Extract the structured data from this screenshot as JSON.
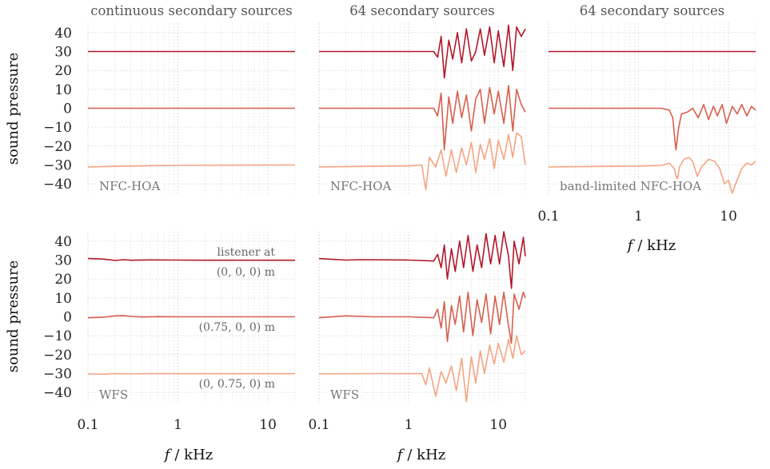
{
  "figure": {
    "ylabel": "sound pressure",
    "xlabel_var": "f",
    "xlabel_unit": "/ kHz",
    "annotation_header": "listener at",
    "colors": {
      "dark": "#b2182b",
      "mid": "#d6604d",
      "light": "#f4a582"
    }
  },
  "chart_data": [
    {
      "id": "nfchoa-continuous",
      "type": "line",
      "title": "continuous secondary sources",
      "tag": "NFC-HOA",
      "xscale": "log",
      "xlim": [
        0.1,
        20
      ],
      "ylim": [
        -45,
        45
      ],
      "yticks": [
        "40",
        "30",
        "20",
        "10",
        "0",
        "−10",
        "−20",
        "−30",
        "−40"
      ],
      "xticks": [],
      "series": [
        {
          "color": "#b2182b",
          "points": [
            [
              0.1,
              30
            ],
            [
              20,
              30
            ]
          ]
        },
        {
          "color": "#d6604d",
          "points": [
            [
              0.1,
              0
            ],
            [
              1,
              0
            ],
            [
              20,
              0
            ]
          ]
        },
        {
          "color": "#f4a582",
          "points": [
            [
              0.1,
              -31
            ],
            [
              0.2,
              -30.7
            ],
            [
              0.5,
              -30.4
            ],
            [
              1,
              -30.2
            ],
            [
              5,
              -30.1
            ],
            [
              20,
              -30
            ]
          ]
        }
      ]
    },
    {
      "id": "nfchoa-64",
      "type": "line",
      "title": "64 secondary sources",
      "tag": "NFC-HOA",
      "xscale": "log",
      "xlim": [
        0.1,
        20
      ],
      "ylim": [
        -45,
        45
      ],
      "yticks": [],
      "xticks": [],
      "series": [
        {
          "color": "#b2182b",
          "points": [
            [
              0.1,
              30
            ],
            [
              1.9,
              30
            ],
            [
              2.1,
              27
            ],
            [
              2.3,
              38
            ],
            [
              2.5,
              16
            ],
            [
              2.8,
              36
            ],
            [
              3.1,
              26
            ],
            [
              3.5,
              40
            ],
            [
              3.9,
              24
            ],
            [
              4.4,
              42
            ],
            [
              5,
              25
            ],
            [
              5.6,
              30
            ],
            [
              6.3,
              42
            ],
            [
              7,
              28
            ],
            [
              8,
              43
            ],
            [
              9,
              24
            ],
            [
              10,
              41
            ],
            [
              11.5,
              22
            ],
            [
              13,
              44
            ],
            [
              14.5,
              20
            ],
            [
              16,
              43
            ],
            [
              18,
              38
            ],
            [
              20,
              42
            ]
          ]
        },
        {
          "color": "#d6604d",
          "points": [
            [
              0.1,
              0
            ],
            [
              1.9,
              0
            ],
            [
              2.1,
              -4
            ],
            [
              2.3,
              8
            ],
            [
              2.5,
              -22
            ],
            [
              2.8,
              6
            ],
            [
              3.1,
              -8
            ],
            [
              3.5,
              9
            ],
            [
              3.9,
              -5
            ],
            [
              4.4,
              7
            ],
            [
              5,
              -12
            ],
            [
              5.6,
              5
            ],
            [
              6.3,
              10
            ],
            [
              7,
              -8
            ],
            [
              8,
              11
            ],
            [
              9,
              -3
            ],
            [
              10,
              9
            ],
            [
              11.5,
              -8
            ],
            [
              13,
              12
            ],
            [
              14.5,
              -12
            ],
            [
              16,
              10
            ],
            [
              18,
              2
            ],
            [
              20,
              -2
            ]
          ]
        },
        {
          "color": "#f4a582",
          "points": [
            [
              0.1,
              -31
            ],
            [
              1,
              -30.5
            ],
            [
              1.4,
              -30
            ],
            [
              1.55,
              -43
            ],
            [
              1.7,
              -26
            ],
            [
              2,
              -31
            ],
            [
              2.3,
              -22
            ],
            [
              2.6,
              -36
            ],
            [
              3,
              -22
            ],
            [
              3.4,
              -34
            ],
            [
              3.9,
              -21
            ],
            [
              4.4,
              -30
            ],
            [
              5,
              -18
            ],
            [
              5.6,
              -34
            ],
            [
              6.3,
              -19
            ],
            [
              7,
              -27
            ],
            [
              8,
              -16
            ],
            [
              9,
              -32
            ],
            [
              10,
              -17
            ],
            [
              11.5,
              -27
            ],
            [
              13,
              -14
            ],
            [
              14.5,
              -26
            ],
            [
              16,
              -13
            ],
            [
              18,
              -15
            ],
            [
              20,
              -30
            ]
          ]
        }
      ]
    },
    {
      "id": "bandlimited-64",
      "type": "line",
      "title": "64 secondary sources",
      "tag": "band-limited NFC-HOA",
      "xscale": "log",
      "xlim": [
        0.1,
        20
      ],
      "ylim": [
        -45,
        45
      ],
      "yticks": [],
      "xticks": [
        "0.1",
        "1",
        "10"
      ],
      "series": [
        {
          "color": "#b2182b",
          "points": [
            [
              0.1,
              30
            ],
            [
              20,
              30
            ]
          ]
        },
        {
          "color": "#d6604d",
          "points": [
            [
              0.1,
              0
            ],
            [
              1.8,
              0
            ],
            [
              2.2,
              -1
            ],
            [
              2.4,
              -5
            ],
            [
              2.6,
              -22
            ],
            [
              2.8,
              -10
            ],
            [
              3,
              -3
            ],
            [
              3.5,
              -2
            ],
            [
              4,
              0
            ],
            [
              4.6,
              -5
            ],
            [
              5.3,
              2
            ],
            [
              6,
              -6
            ],
            [
              6.8,
              1
            ],
            [
              7.5,
              -4
            ],
            [
              8.5,
              2
            ],
            [
              9.5,
              -8
            ],
            [
              11,
              1
            ],
            [
              12.5,
              -3
            ],
            [
              14,
              2
            ],
            [
              16,
              -4
            ],
            [
              18,
              1
            ],
            [
              20,
              -1
            ]
          ]
        },
        {
          "color": "#f4a582",
          "points": [
            [
              0.1,
              -31
            ],
            [
              1,
              -30.6
            ],
            [
              1.8,
              -30.2
            ],
            [
              2.2,
              -29
            ],
            [
              2.5,
              -32
            ],
            [
              2.7,
              -38
            ],
            [
              2.85,
              -31
            ],
            [
              3.2,
              -27
            ],
            [
              3.6,
              -26
            ],
            [
              4,
              -28
            ],
            [
              4.5,
              -36
            ],
            [
              5,
              -31
            ],
            [
              6,
              -27
            ],
            [
              7,
              -28
            ],
            [
              8,
              -32
            ],
            [
              9,
              -40
            ],
            [
              10,
              -38
            ],
            [
              11,
              -45
            ],
            [
              12,
              -40
            ],
            [
              14,
              -32
            ],
            [
              16,
              -29
            ],
            [
              18,
              -30
            ],
            [
              20,
              -28
            ]
          ]
        }
      ]
    },
    {
      "id": "wfs-continuous",
      "type": "line",
      "title": "",
      "tag": "WFS",
      "xscale": "log",
      "xlim": [
        0.1,
        20
      ],
      "ylim": [
        -45,
        45
      ],
      "yticks": [
        "40",
        "30",
        "20",
        "10",
        "0",
        "−10",
        "−20",
        "−30",
        "−40"
      ],
      "xticks": [
        "0.1",
        "1",
        "10"
      ],
      "annotations": [
        "(0, 0, 0) m",
        "(0.75, 0, 0) m",
        "(0, 0.75, 0) m"
      ],
      "series": [
        {
          "color": "#b2182b",
          "points": [
            [
              0.1,
              30.8
            ],
            [
              0.15,
              30.5
            ],
            [
              0.2,
              29.8
            ],
            [
              0.25,
              30.2
            ],
            [
              0.3,
              29.9
            ],
            [
              0.5,
              30.1
            ],
            [
              1,
              30
            ],
            [
              2,
              29.9
            ],
            [
              20,
              29.9
            ]
          ]
        },
        {
          "color": "#d6604d",
          "points": [
            [
              0.1,
              -0.5
            ],
            [
              0.15,
              -0.2
            ],
            [
              0.2,
              0.5
            ],
            [
              0.25,
              0.6
            ],
            [
              0.3,
              0.2
            ],
            [
              0.4,
              -0.1
            ],
            [
              0.6,
              0.1
            ],
            [
              1,
              0
            ],
            [
              20,
              0
            ]
          ]
        },
        {
          "color": "#f4a582",
          "points": [
            [
              0.1,
              -30.2
            ],
            [
              0.15,
              -30.4
            ],
            [
              0.2,
              -30
            ],
            [
              0.3,
              -30.2
            ],
            [
              0.5,
              -30
            ],
            [
              1,
              -30.1
            ],
            [
              20,
              -30.1
            ]
          ]
        }
      ]
    },
    {
      "id": "wfs-64",
      "type": "line",
      "title": "",
      "tag": "WFS",
      "xscale": "log",
      "xlim": [
        0.1,
        20
      ],
      "ylim": [
        -45,
        45
      ],
      "yticks": [],
      "xticks": [
        "0.1",
        "1",
        "10"
      ],
      "series": [
        {
          "color": "#b2182b",
          "points": [
            [
              0.1,
              30.8
            ],
            [
              0.2,
              30
            ],
            [
              0.3,
              30.2
            ],
            [
              1,
              30
            ],
            [
              1.9,
              29.5
            ],
            [
              2.1,
              33
            ],
            [
              2.3,
              26
            ],
            [
              2.5,
              38
            ],
            [
              2.7,
              20
            ],
            [
              3,
              36
            ],
            [
              3.3,
              24
            ],
            [
              3.7,
              40
            ],
            [
              4.1,
              26
            ],
            [
              4.6,
              43
            ],
            [
              5.2,
              24
            ],
            [
              5.8,
              38
            ],
            [
              6.5,
              26
            ],
            [
              7.3,
              44
            ],
            [
              8.2,
              28
            ],
            [
              9.2,
              43
            ],
            [
              10.3,
              28
            ],
            [
              11.5,
              45
            ],
            [
              13,
              32
            ],
            [
              14,
              15
            ],
            [
              15,
              40
            ],
            [
              17,
              28
            ],
            [
              19,
              42
            ],
            [
              20,
              32
            ]
          ]
        },
        {
          "color": "#d6604d",
          "points": [
            [
              0.1,
              -0.5
            ],
            [
              0.2,
              0.5
            ],
            [
              0.4,
              0
            ],
            [
              1,
              0
            ],
            [
              1.9,
              -0.5
            ],
            [
              2.1,
              4
            ],
            [
              2.3,
              -6
            ],
            [
              2.5,
              8
            ],
            [
              2.7,
              -13
            ],
            [
              3,
              6
            ],
            [
              3.3,
              -4
            ],
            [
              3.7,
              11
            ],
            [
              4.1,
              -8
            ],
            [
              4.6,
              13
            ],
            [
              5.2,
              -10
            ],
            [
              5.8,
              9
            ],
            [
              6.5,
              -3
            ],
            [
              7.3,
              12
            ],
            [
              8.2,
              -9
            ],
            [
              9.2,
              11
            ],
            [
              10.3,
              -4
            ],
            [
              11.5,
              13
            ],
            [
              13,
              -5
            ],
            [
              14,
              -14
            ],
            [
              15,
              12
            ],
            [
              17,
              4
            ],
            [
              19,
              13
            ],
            [
              20,
              10
            ]
          ]
        },
        {
          "color": "#f4a582",
          "points": [
            [
              0.1,
              -30.2
            ],
            [
              0.5,
              -30
            ],
            [
              1,
              -30.1
            ],
            [
              1.4,
              -30
            ],
            [
              1.55,
              -36
            ],
            [
              1.7,
              -27
            ],
            [
              2,
              -42
            ],
            [
              2.3,
              -29
            ],
            [
              2.6,
              -35
            ],
            [
              3,
              -26
            ],
            [
              3.4,
              -39
            ],
            [
              3.9,
              -22
            ],
            [
              4.4,
              -45
            ],
            [
              5,
              -21
            ],
            [
              5.6,
              -35
            ],
            [
              6.3,
              -18
            ],
            [
              7,
              -30
            ],
            [
              8,
              -15
            ],
            [
              9,
              -25
            ],
            [
              10,
              -14
            ],
            [
              11.5,
              -24
            ],
            [
              13,
              -12
            ],
            [
              14.5,
              -22
            ],
            [
              16,
              -10
            ],
            [
              18,
              -20
            ],
            [
              20,
              -18
            ]
          ]
        }
      ]
    }
  ]
}
